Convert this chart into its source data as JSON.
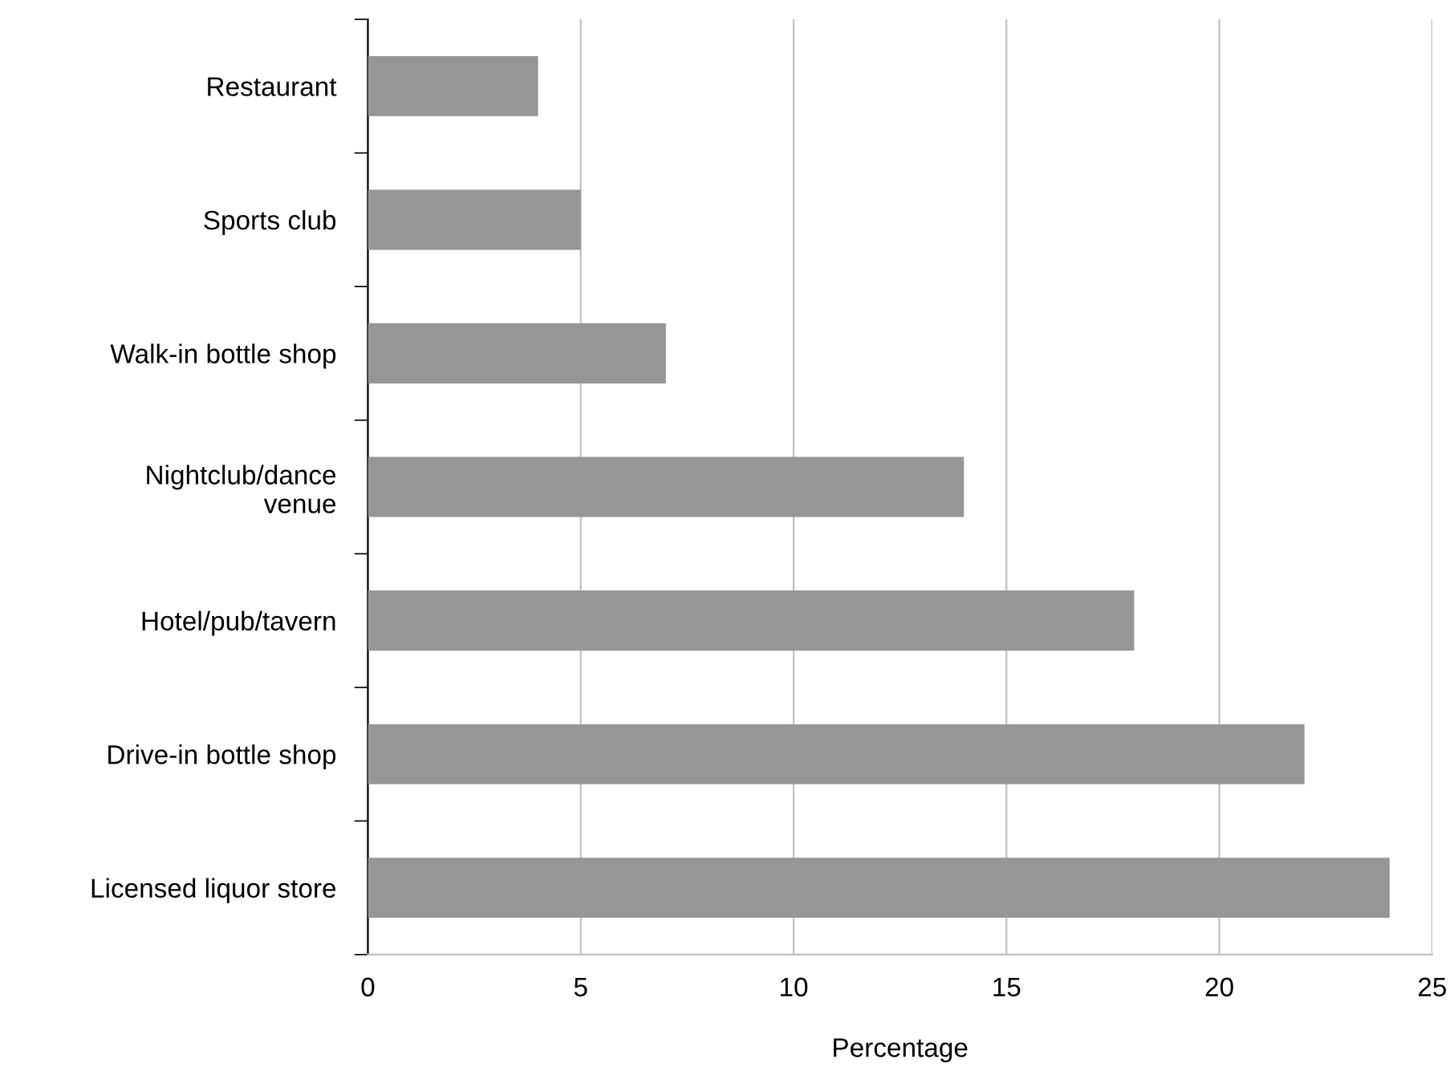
{
  "chart_data": {
    "type": "bar",
    "orientation": "horizontal",
    "categories": [
      "Restaurant",
      "Sports club",
      "Walk-in bottle shop",
      "Nightclub/dance\nvenue",
      "Hotel/pub/tavern",
      "Drive-in bottle shop",
      "Licensed liquor store"
    ],
    "values": [
      4,
      5,
      7,
      14,
      18,
      22,
      24
    ],
    "color": "#969696",
    "xlabel": "Percentage",
    "xlim": [
      0,
      25
    ],
    "xticks": [
      0,
      5,
      10,
      15,
      20,
      25
    ],
    "grid": "x",
    "legend": false
  }
}
